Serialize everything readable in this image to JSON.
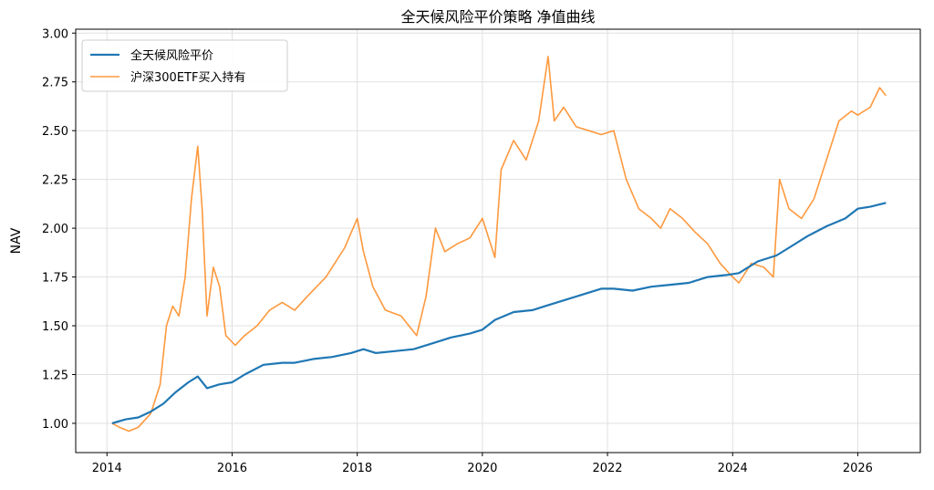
{
  "chart_data": {
    "type": "line",
    "title": "全天候风险平价策略 净值曲线",
    "xlabel": "",
    "ylabel": "NAV",
    "xlim": [
      2013.5,
      2027.0
    ],
    "ylim": [
      0.85,
      3.02
    ],
    "x_ticks": [
      "2014",
      "2016",
      "2018",
      "2020",
      "2022",
      "2024",
      "2026"
    ],
    "y_ticks": [
      "1.00",
      "1.25",
      "1.50",
      "1.75",
      "2.00",
      "2.25",
      "2.50",
      "2.75",
      "3.00"
    ],
    "grid": true,
    "legend_position": "top-left",
    "series": [
      {
        "name": "全天候风险平价",
        "color": "#1f77b4",
        "x": [
          2014.08,
          2014.3,
          2014.5,
          2014.7,
          2014.9,
          2015.1,
          2015.3,
          2015.45,
          2015.6,
          2015.8,
          2016.0,
          2016.2,
          2016.5,
          2016.8,
          2017.0,
          2017.3,
          2017.6,
          2017.9,
          2018.1,
          2018.3,
          2018.6,
          2018.9,
          2019.2,
          2019.5,
          2019.8,
          2020.0,
          2020.2,
          2020.5,
          2020.8,
          2021.0,
          2021.3,
          2021.6,
          2021.9,
          2022.1,
          2022.4,
          2022.7,
          2023.0,
          2023.3,
          2023.6,
          2023.9,
          2024.1,
          2024.4,
          2024.7,
          2024.9,
          2025.2,
          2025.5,
          2025.8,
          2026.0,
          2026.2,
          2026.45
        ],
        "values": [
          1.0,
          1.02,
          1.03,
          1.06,
          1.1,
          1.16,
          1.21,
          1.24,
          1.18,
          1.2,
          1.21,
          1.25,
          1.3,
          1.31,
          1.31,
          1.33,
          1.34,
          1.36,
          1.38,
          1.36,
          1.37,
          1.38,
          1.41,
          1.44,
          1.46,
          1.48,
          1.53,
          1.57,
          1.58,
          1.6,
          1.63,
          1.66,
          1.69,
          1.69,
          1.68,
          1.7,
          1.71,
          1.72,
          1.75,
          1.76,
          1.77,
          1.83,
          1.86,
          1.9,
          1.96,
          2.01,
          2.05,
          2.1,
          2.11,
          2.13
        ]
      },
      {
        "name": "沪深300ETF买入持有",
        "color": "#ff7f0e",
        "x": [
          2014.08,
          2014.2,
          2014.35,
          2014.5,
          2014.7,
          2014.85,
          2014.95,
          2015.05,
          2015.15,
          2015.25,
          2015.35,
          2015.45,
          2015.52,
          2015.6,
          2015.7,
          2015.8,
          2015.9,
          2016.05,
          2016.2,
          2016.4,
          2016.6,
          2016.8,
          2017.0,
          2017.2,
          2017.5,
          2017.8,
          2018.0,
          2018.1,
          2018.25,
          2018.45,
          2018.7,
          2018.95,
          2019.1,
          2019.25,
          2019.4,
          2019.6,
          2019.8,
          2020.0,
          2020.2,
          2020.3,
          2020.5,
          2020.7,
          2020.9,
          2021.05,
          2021.15,
          2021.3,
          2021.5,
          2021.7,
          2021.9,
          2022.1,
          2022.3,
          2022.5,
          2022.7,
          2022.85,
          2023.0,
          2023.2,
          2023.4,
          2023.6,
          2023.8,
          2024.0,
          2024.1,
          2024.3,
          2024.5,
          2024.65,
          2024.75,
          2024.9,
          2025.1,
          2025.3,
          2025.5,
          2025.7,
          2025.9,
          2026.0,
          2026.2,
          2026.35,
          2026.45
        ],
        "values": [
          1.0,
          0.98,
          0.96,
          0.98,
          1.05,
          1.2,
          1.5,
          1.6,
          1.55,
          1.75,
          2.15,
          2.42,
          2.1,
          1.55,
          1.8,
          1.7,
          1.45,
          1.4,
          1.45,
          1.5,
          1.58,
          1.62,
          1.58,
          1.65,
          1.75,
          1.9,
          2.05,
          1.88,
          1.7,
          1.58,
          1.55,
          1.45,
          1.65,
          2.0,
          1.88,
          1.92,
          1.95,
          2.05,
          1.85,
          2.3,
          2.45,
          2.35,
          2.55,
          2.88,
          2.55,
          2.62,
          2.52,
          2.5,
          2.48,
          2.5,
          2.25,
          2.1,
          2.05,
          2.0,
          2.1,
          2.05,
          1.98,
          1.92,
          1.82,
          1.75,
          1.72,
          1.82,
          1.8,
          1.75,
          2.25,
          2.1,
          2.05,
          2.15,
          2.35,
          2.55,
          2.6,
          2.58,
          2.62,
          2.72,
          2.68
        ]
      }
    ]
  }
}
